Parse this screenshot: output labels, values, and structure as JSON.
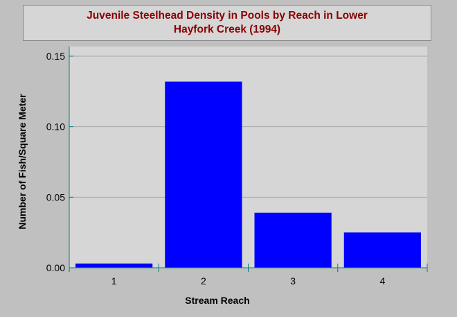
{
  "chart_data": {
    "type": "bar",
    "title_lines": [
      "Juvenile Steelhead Density in Pools by Reach in Lower",
      "Hayfork Creek (1994)"
    ],
    "xlabel": "Stream Reach",
    "ylabel": "Number of Fish/Square Meter",
    "categories": [
      "1",
      "2",
      "3",
      "4"
    ],
    "values": [
      0.003,
      0.132,
      0.039,
      0.025
    ],
    "ylim": [
      0,
      0.15
    ],
    "yticks": [
      0.0,
      0.05,
      0.1,
      0.15
    ],
    "ytick_labels": [
      "0.00",
      "0.05",
      "0.10",
      "0.15"
    ],
    "grid": true,
    "colors": {
      "bar": "#0000ff",
      "plot_background": "#d6d6d6",
      "page_background": "#c0c0c0",
      "axis": "#008080",
      "gridline": "#a8a8a8",
      "title": "#8b0000"
    }
  }
}
